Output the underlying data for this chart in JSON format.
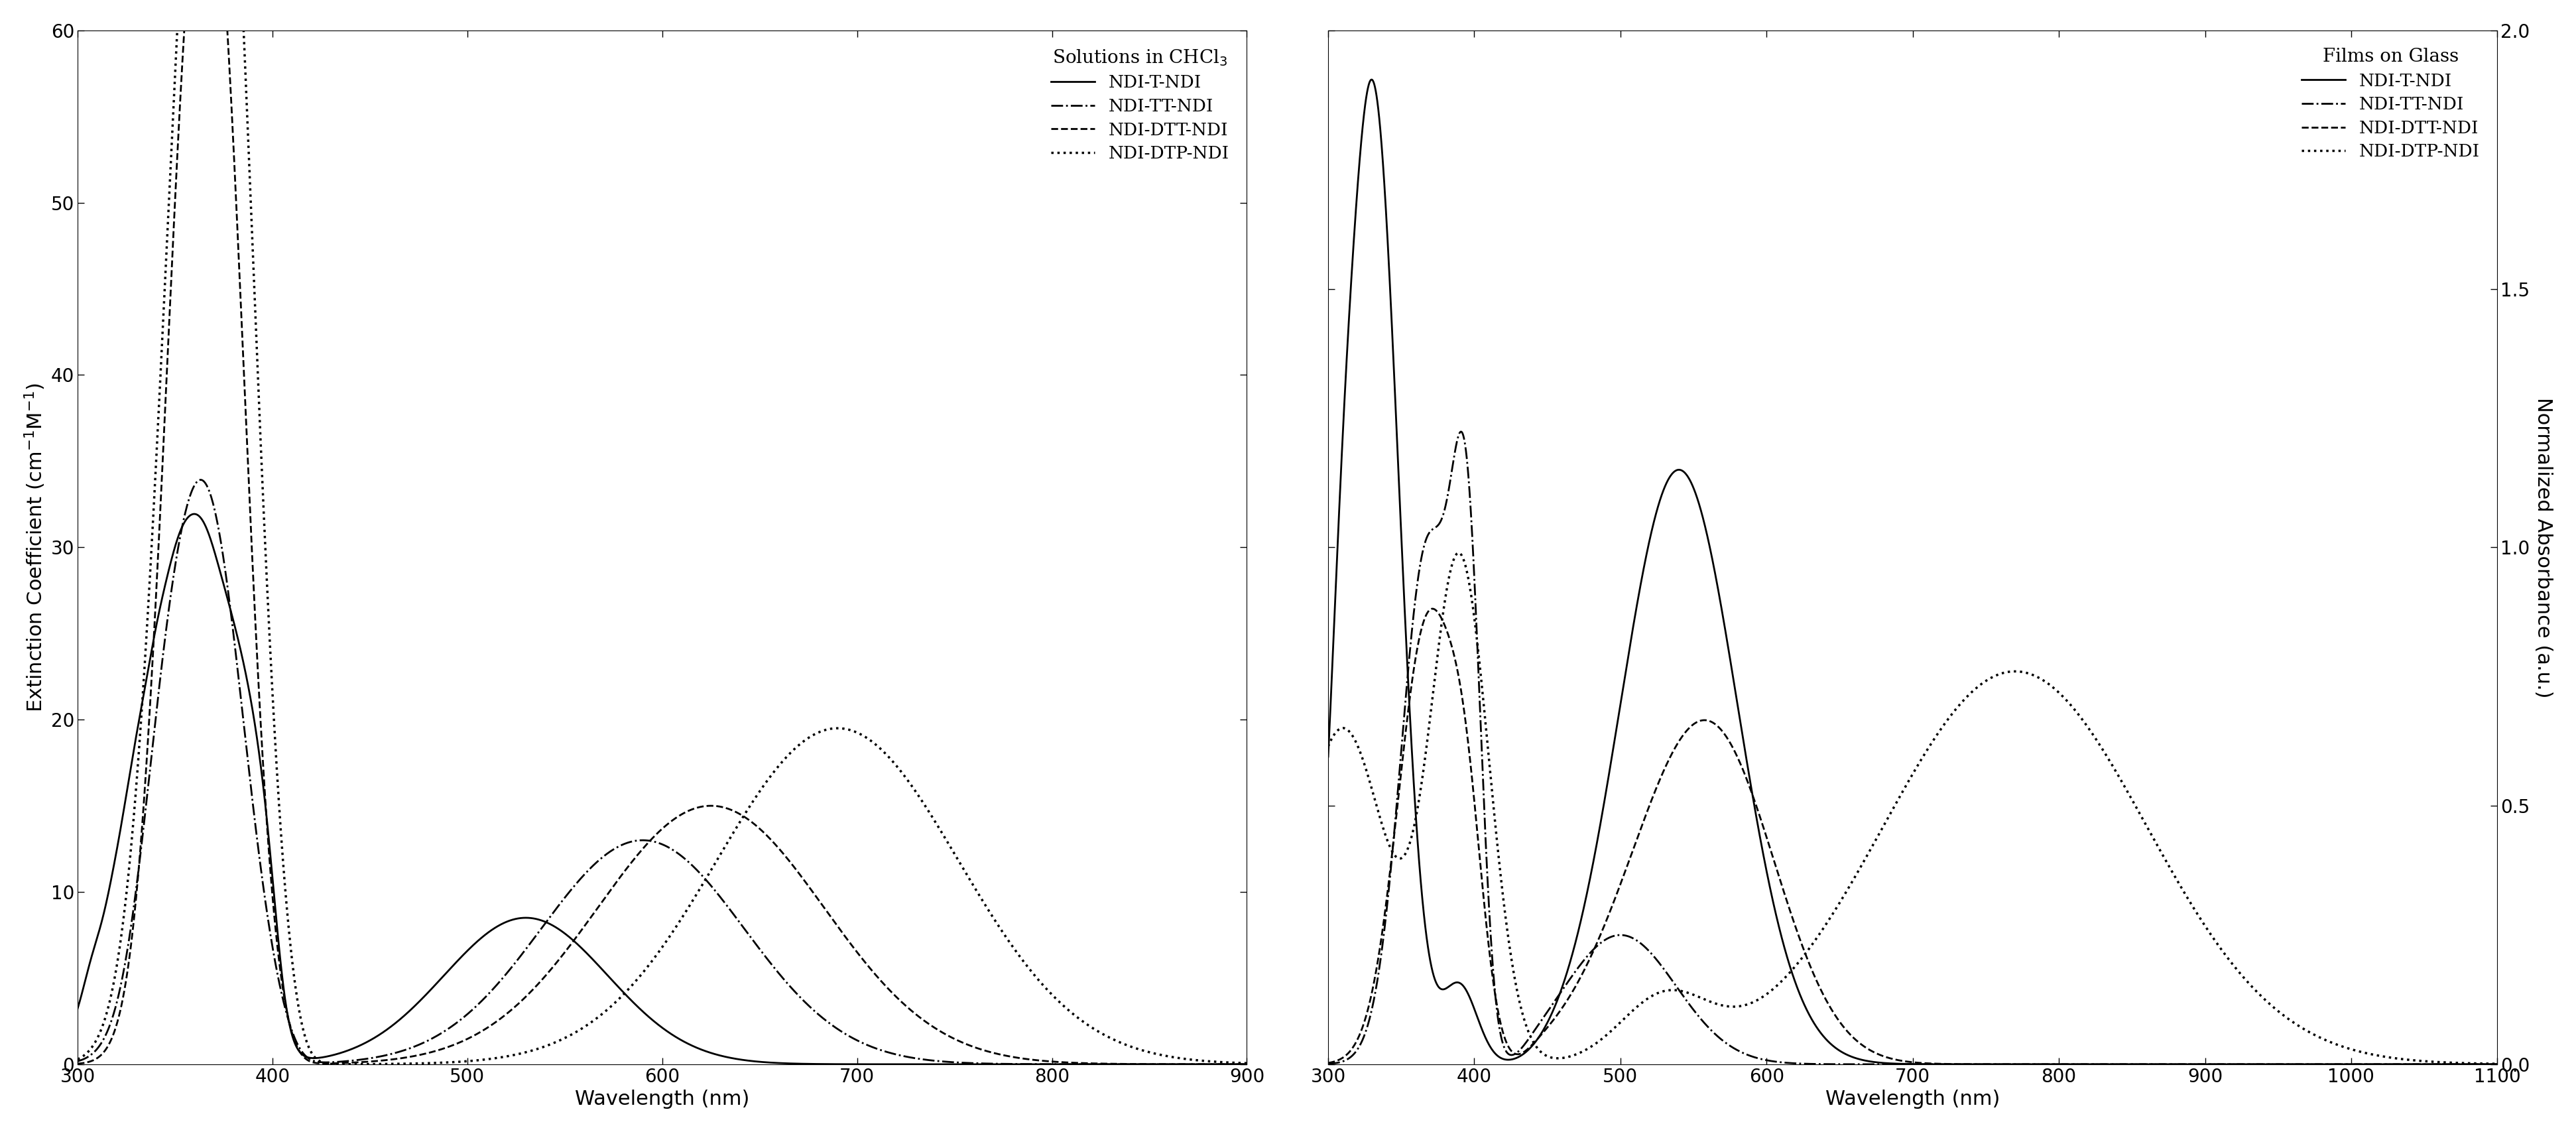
{
  "plot1": {
    "xlabel": "Wavelength (nm)",
    "ylabel": "Extinction Coefficient (cm$^{-1}$M$^{-1}$)",
    "xlim": [
      300,
      900
    ],
    "ylim": [
      0,
      60
    ],
    "yticks": [
      0,
      10,
      20,
      30,
      40,
      50,
      60
    ],
    "xticks": [
      300,
      400,
      500,
      600,
      700,
      800,
      900
    ],
    "legend_title": "Solutions in CHCl",
    "legend_sub": "3",
    "series": [
      {
        "label": "NDI-T-NDI",
        "linestyle": "solid",
        "linewidth": 2.0,
        "dashes": null
      },
      {
        "label": "NDI-TT-NDI",
        "linestyle": "dashdot",
        "linewidth": 2.0,
        "dashes": null
      },
      {
        "label": "NDI-DTT-NDI",
        "linestyle": "dashed",
        "linewidth": 2.0,
        "dashes": null
      },
      {
        "label": "NDI-DTP-NDI",
        "linestyle": "dotted",
        "linewidth": 2.5,
        "dashes": null
      }
    ]
  },
  "plot2": {
    "xlabel": "Wavelength (nm)",
    "ylabel": "Normalized Absorbance (a.u.)",
    "xlim": [
      300,
      1100
    ],
    "ylim": [
      0,
      2
    ],
    "yticks": [
      0,
      0.5,
      1.0,
      1.5,
      2.0
    ],
    "xticks": [
      300,
      400,
      500,
      600,
      700,
      800,
      900,
      1000,
      1100
    ],
    "legend_title": "Films on Glass",
    "series": [
      {
        "label": "NDI-T-NDI",
        "linestyle": "solid",
        "linewidth": 2.0
      },
      {
        "label": "NDI-TT-NDI",
        "linestyle": "dashdot",
        "linewidth": 2.0
      },
      {
        "label": "NDI-DTT-NDI",
        "linestyle": "dashed",
        "linewidth": 2.0
      },
      {
        "label": "NDI-DTP-NDI",
        "linestyle": "dotted",
        "linewidth": 2.5
      }
    ]
  },
  "figure_bgcolor": "#ffffff",
  "fontsize_label": 22,
  "fontsize_tick": 20,
  "fontsize_legend_title": 20,
  "fontsize_legend": 19
}
